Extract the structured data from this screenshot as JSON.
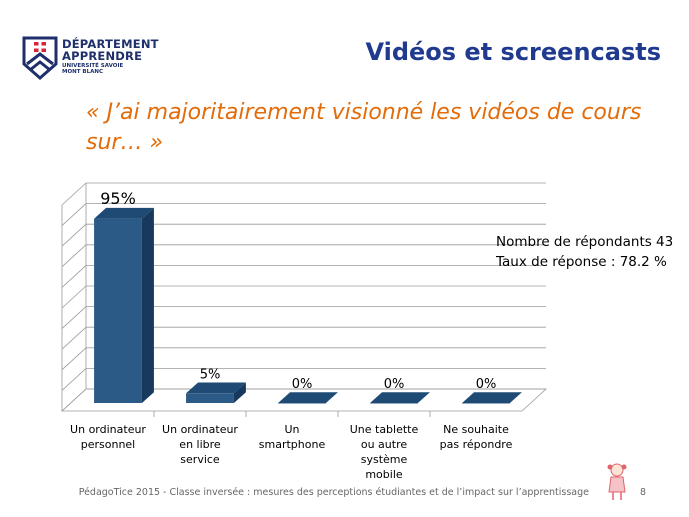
{
  "logo": {
    "line1": "DÉPARTEMENT",
    "line2": "APPRENDRE",
    "line3": "UNIVERSITÉ SAVOIE",
    "line4": "MONT BLANC"
  },
  "header": {
    "title": "Vidéos et screencasts"
  },
  "question": "« J’ai majoritairement visionné les vidéos de cours sur… »",
  "info": {
    "respondents": "Nombre de répondants 43",
    "response_rate": "Taux de réponse : 78.2 %"
  },
  "footer": {
    "text": "PédagoTice 2015 - Classe inversée : mesures des perceptions étudiantes et de l’impact sur l’apprentissage",
    "page": "8"
  },
  "chart_data": {
    "type": "bar",
    "categories": [
      [
        "Un ordinateur",
        "personnel"
      ],
      [
        "Un ordinateur",
        "en libre",
        "service"
      ],
      [
        "Un",
        "smartphone"
      ],
      [
        "Une tablette",
        "ou autre",
        "système",
        "mobile"
      ],
      [
        "Ne souhaite",
        "pas répondre"
      ]
    ],
    "values": [
      95,
      5,
      0,
      0,
      0
    ],
    "data_labels": [
      "95%",
      "5%",
      "0%",
      "0%",
      "0%"
    ],
    "ylim": [
      0,
      100
    ],
    "grid": true,
    "style": "3d",
    "colors": {
      "bar_front": "#2b5a86",
      "bar_side": "#173a5c",
      "bar_top": "#1e4a73",
      "grid": "#9a9a9a"
    }
  }
}
